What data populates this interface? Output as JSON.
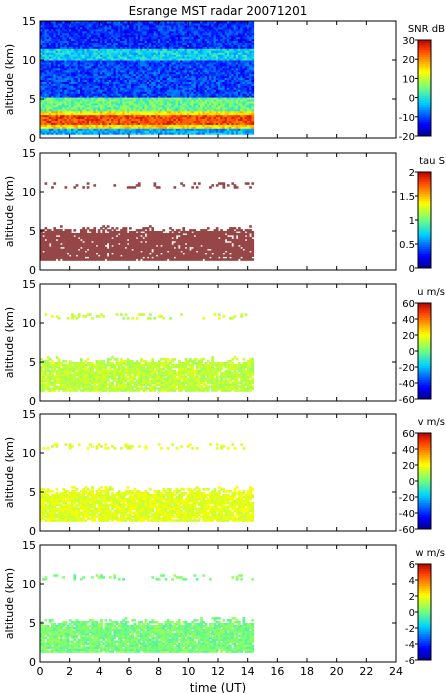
{
  "chart_data": [
    {
      "type": "heatmap",
      "title": "Esrange MST radar 20071201",
      "xlabel": "",
      "ylabel": "altitude (km)",
      "xlim": [
        0,
        24
      ],
      "ylim": [
        0,
        15
      ],
      "xticks": [
        0,
        2,
        4,
        6,
        8,
        10,
        12,
        14,
        16,
        18,
        20,
        22,
        24
      ],
      "yticks": [
        0,
        5,
        10,
        15
      ],
      "colorbar": {
        "label": "SNR dB",
        "min": -20,
        "max": 30,
        "ticks": [
          -20,
          -10,
          0,
          10,
          20,
          30
        ]
      },
      "data_extent": {
        "time_start_ut": 0,
        "time_end_ut": 14.3,
        "alt_min_km": 0.5,
        "alt_max_km": 15
      },
      "features": [
        {
          "altitude_km": [
            1.5,
            3
          ],
          "level": "20 to 30"
        },
        {
          "altitude_km": [
            3,
            5
          ],
          "level": "5 to 15"
        },
        {
          "altitude_km": [
            10,
            11.5
          ],
          "level": "0 to 5"
        },
        {
          "altitude_km": [
            5,
            15
          ],
          "level": "-15 to -5"
        }
      ]
    },
    {
      "type": "heatmap",
      "xlabel": "",
      "ylabel": "altitude (km)",
      "xlim": [
        0,
        24
      ],
      "ylim": [
        0,
        15
      ],
      "xticks": [
        0,
        2,
        4,
        6,
        8,
        10,
        12,
        14,
        16,
        18,
        20,
        22,
        24
      ],
      "yticks": [
        0,
        5,
        10,
        15
      ],
      "colorbar": {
        "label": "tau S",
        "min": 0,
        "max": 2,
        "ticks": [
          0,
          0.5,
          1,
          1.5,
          2
        ]
      },
      "data_extent": {
        "time_start_ut": 0,
        "time_end_ut": 14.3
      },
      "features": [
        {
          "altitude_km": [
            1.2,
            5.5
          ],
          "value": 2
        },
        {
          "altitude_km": [
            10.5,
            11.2
          ],
          "value": 2
        }
      ]
    },
    {
      "type": "heatmap",
      "xlabel": "",
      "ylabel": "altitude (km)",
      "xlim": [
        0,
        24
      ],
      "ylim": [
        0,
        15
      ],
      "xticks": [
        0,
        2,
        4,
        6,
        8,
        10,
        12,
        14,
        16,
        18,
        20,
        22,
        24
      ],
      "yticks": [
        0,
        5,
        10,
        15
      ],
      "colorbar": {
        "label": "u m/s",
        "min": -60,
        "max": 60,
        "ticks": [
          -60,
          -40,
          -20,
          0,
          20,
          40,
          60
        ]
      },
      "data_extent": {
        "time_start_ut": 0,
        "time_end_ut": 14.3
      },
      "features": [
        {
          "altitude_km": [
            1.2,
            5.5
          ],
          "value_range": [
            5,
            15
          ]
        },
        {
          "altitude_km": [
            10.5,
            11.2
          ],
          "value_range": [
            10,
            20
          ]
        }
      ]
    },
    {
      "type": "heatmap",
      "xlabel": "",
      "ylabel": "altitude (km)",
      "xlim": [
        0,
        24
      ],
      "ylim": [
        0,
        15
      ],
      "xticks": [
        0,
        2,
        4,
        6,
        8,
        10,
        12,
        14,
        16,
        18,
        20,
        22,
        24
      ],
      "yticks": [
        0,
        5,
        10,
        15
      ],
      "colorbar": {
        "label": "v m/s",
        "min": -60,
        "max": 60,
        "ticks": [
          -60,
          -40,
          -20,
          0,
          20,
          40,
          60
        ]
      },
      "data_extent": {
        "time_start_ut": 0,
        "time_end_ut": 14.3
      },
      "features": [
        {
          "altitude_km": [
            1.2,
            5.5
          ],
          "value_range": [
            10,
            20
          ]
        },
        {
          "altitude_km": [
            10.5,
            11.2
          ],
          "value_range": [
            5,
            15
          ]
        }
      ]
    },
    {
      "type": "heatmap",
      "xlabel": "time (UT)",
      "ylabel": "altitude (km)",
      "xlim": [
        0,
        24
      ],
      "ylim": [
        0,
        15
      ],
      "xticks": [
        0,
        2,
        4,
        6,
        8,
        10,
        12,
        14,
        16,
        18,
        20,
        22,
        24
      ],
      "yticks": [
        0,
        5,
        10,
        15
      ],
      "colorbar": {
        "label": "w m/s",
        "min": -6,
        "max": 6,
        "ticks": [
          -6,
          -4,
          -2,
          0,
          2,
          4,
          6
        ]
      },
      "data_extent": {
        "time_start_ut": 0,
        "time_end_ut": 14.3
      },
      "features": [
        {
          "altitude_km": [
            0.5,
            5.5
          ],
          "value_range": [
            -0.5,
            0.5
          ]
        },
        {
          "altitude_km": [
            10.5,
            11.2
          ],
          "value_range": [
            -0.5,
            0.5
          ]
        }
      ]
    }
  ]
}
